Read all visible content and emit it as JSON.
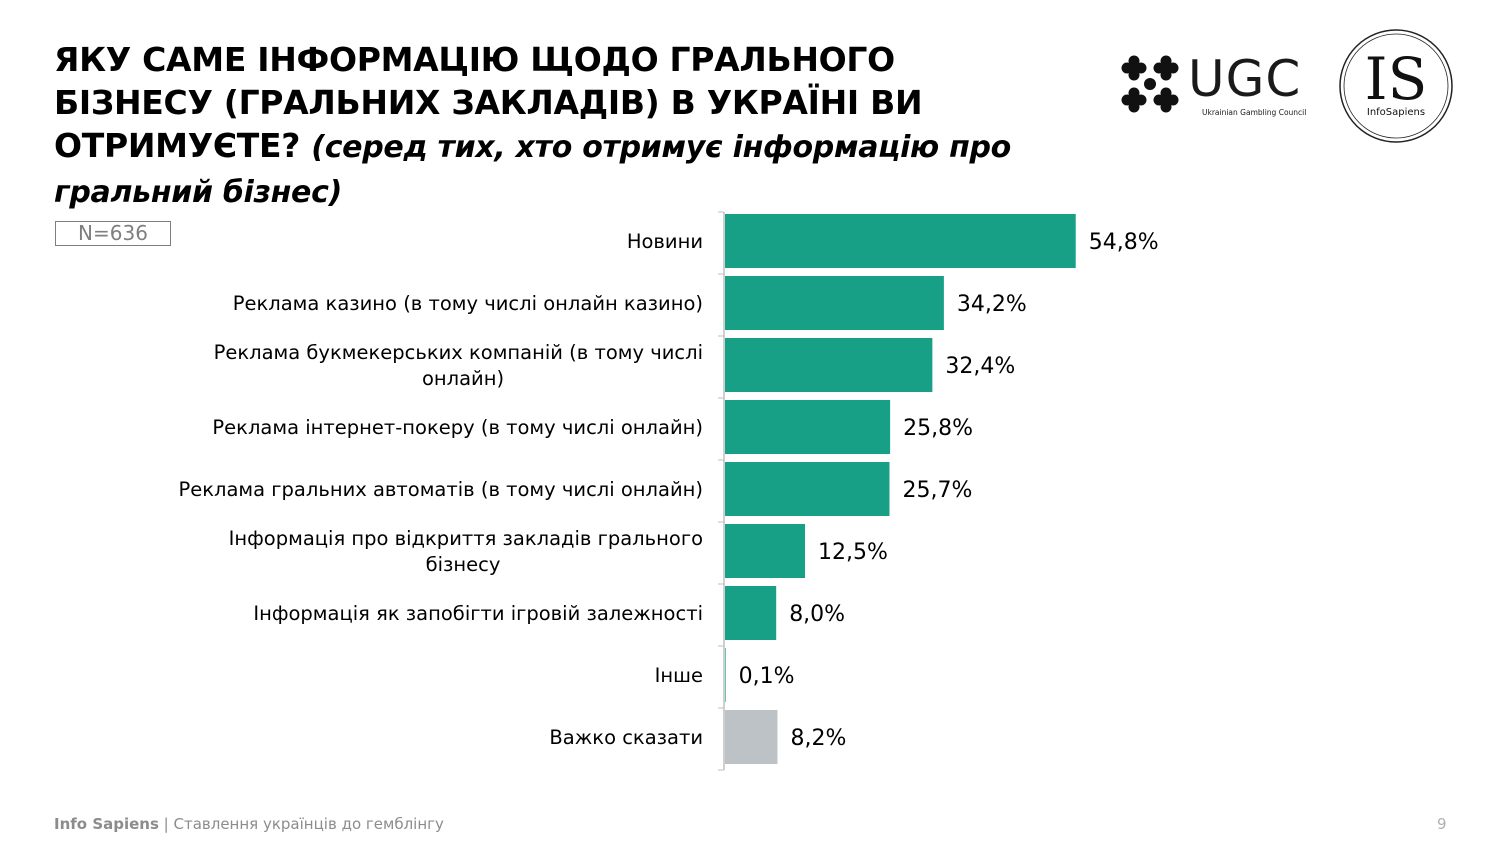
{
  "header": {
    "title_main": "ЯКУ САМЕ ІНФОРМАЦІЮ ЩОДО ГРАЛЬНОГО БІЗНЕСУ (ГРАЛЬНИХ ЗАКЛАДІВ) В УКРАЇНІ ВИ ОТРИМУЄТЕ?",
    "title_sub": "(серед тих, хто отримує інформацію про гральний бізнес)"
  },
  "sample_size": "N=636",
  "logos": {
    "ugc_text": "UGC",
    "ugc_subtitle": "Ukrainian Gambling Council",
    "is_text": "IS",
    "is_subtitle": "InfoSapiens"
  },
  "colors": {
    "bar": "#17a086",
    "bar_muted": "#bcc2c6",
    "axis": "#bfbfbf"
  },
  "chart_data": {
    "type": "bar",
    "orientation": "horizontal",
    "categories": [
      "Новини",
      "Реклама казино (в тому числі онлайн казино)",
      "Реклама букмекерських компаній (в тому числі онлайн)",
      "Реклама інтернет-покеру (в тому числі онлайн)",
      "Реклама гральних автоматів (в тому числі онлайн)",
      "Інформація про відкриття закладів грального бізнесу",
      "Інформація як запобігти ігровій залежності",
      "Інше",
      "Важко сказати"
    ],
    "values": [
      54.8,
      34.2,
      32.4,
      25.8,
      25.7,
      12.5,
      8.0,
      0.1,
      8.2
    ],
    "value_labels": [
      "54,8%",
      "34,2%",
      "32,4%",
      "25,8%",
      "25,7%",
      "12,5%",
      "8,0%",
      "0,1%",
      "8,2%"
    ],
    "muted_categories": [
      "Важко сказати"
    ],
    "xlim": [
      0,
      100
    ],
    "grid": false,
    "legend": "none"
  },
  "footer": {
    "brand": "Info Sapiens",
    "separator": " | ",
    "subtitle": "Ставлення українців до гемблінгу",
    "page_number": "9"
  }
}
